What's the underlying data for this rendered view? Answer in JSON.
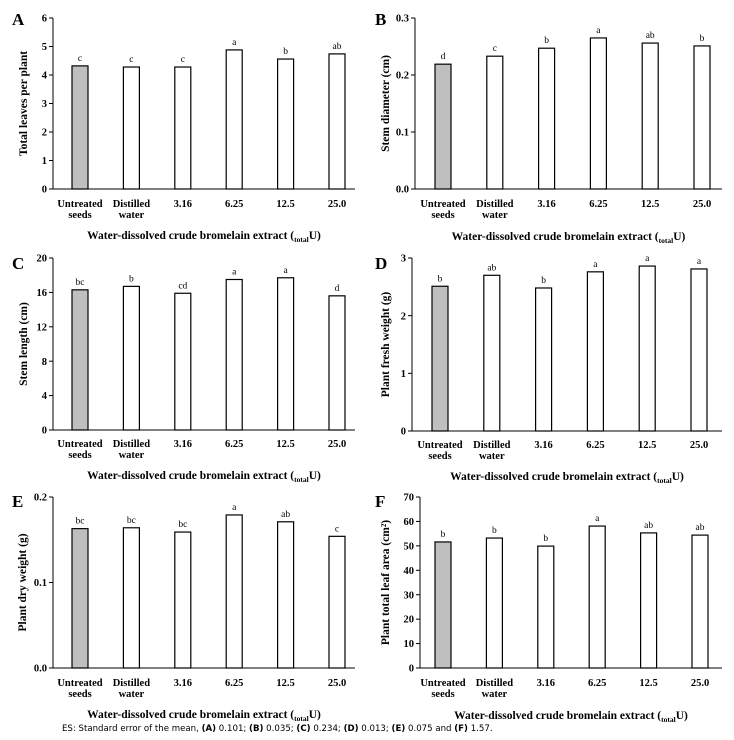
{
  "colors": {
    "control_bar": "#bfbfbf",
    "treatment_bar": "#ffffff",
    "outline": "#000000"
  },
  "footnote": {
    "segments": [
      {
        "text": "ES: Standard error of the mean, ",
        "bold": false
      },
      {
        "text": "(A)",
        "bold": true
      },
      {
        "text": " 0.101; ",
        "bold": false
      },
      {
        "text": "(B)",
        "bold": true
      },
      {
        "text": " 0.035; ",
        "bold": false
      },
      {
        "text": "(C)",
        "bold": true
      },
      {
        "text": " 0.234; ",
        "bold": false
      },
      {
        "text": "(D)",
        "bold": true
      },
      {
        "text": " 0.013; ",
        "bold": false
      },
      {
        "text": "(E)",
        "bold": true
      },
      {
        "text": " 0.075 and ",
        "bold": false
      },
      {
        "text": "(F)",
        "bold": true
      },
      {
        "text": " 1.57.",
        "bold": false
      }
    ]
  },
  "chart_data": [
    {
      "panel": "A",
      "type": "bar",
      "categories": [
        "Untreated seeds",
        "Distilled water",
        "3.16",
        "6.25",
        "12.5",
        "25.0"
      ],
      "values": [
        4.32,
        4.28,
        4.28,
        4.88,
        4.56,
        4.74
      ],
      "significance": [
        "c",
        "c",
        "c",
        "a",
        "b",
        "ab"
      ],
      "ylabel": "Total leaves per plant",
      "xlabel": {
        "main": "Water-dissolved crude bromelain extract (",
        "sub": "total",
        "end": "U)"
      },
      "ylim": [
        0,
        6
      ],
      "yticks": [
        "0",
        "1",
        "2",
        "3",
        "4",
        "5",
        "6"
      ],
      "grid": false
    },
    {
      "panel": "B",
      "type": "bar",
      "categories": [
        "Untreated seeds",
        "Distilled water",
        "3.16",
        "6.25",
        "12.5",
        "25.0"
      ],
      "values": [
        0.219,
        0.233,
        0.247,
        0.265,
        0.256,
        0.251
      ],
      "significance": [
        "d",
        "c",
        "b",
        "a",
        "ab",
        "b"
      ],
      "ylabel": "Stem diameter (cm)",
      "xlabel": {
        "main": "Water-dissolved crude bromelain extract (",
        "sub": "total",
        "end": "U)"
      },
      "ylim": [
        0,
        0.3
      ],
      "yticks": [
        "0.0",
        "0.1",
        "0.2",
        "0.3"
      ],
      "grid": false
    },
    {
      "panel": "C",
      "type": "bar",
      "categories": [
        "Untreated seeds",
        "Distilled water",
        "3.16",
        "6.25",
        "12.5",
        "25.0"
      ],
      "values": [
        16.3,
        16.7,
        15.9,
        17.5,
        17.7,
        15.6
      ],
      "significance": [
        "bc",
        "b",
        "cd",
        "a",
        "a",
        "d"
      ],
      "ylabel": "Stem length (cm)",
      "xlabel": {
        "main": "Water-dissolved crude bromelain extract (",
        "sub": "total",
        "end": "U)"
      },
      "ylim": [
        0,
        20
      ],
      "yticks": [
        "0",
        "4",
        "8",
        "12",
        "16",
        "20"
      ],
      "grid": false
    },
    {
      "panel": "D",
      "type": "bar",
      "categories": [
        "Untreated seeds",
        "Distilled water",
        "3.16",
        "6.25",
        "12.5",
        "25.0"
      ],
      "values": [
        2.51,
        2.7,
        2.48,
        2.76,
        2.86,
        2.81
      ],
      "significance": [
        "b",
        "ab",
        "b",
        "a",
        "a",
        "a"
      ],
      "ylabel": "Plant fresh weight (g)",
      "xlabel": {
        "main": "Water-dissolved crude bromelain extract (",
        "sub": "total",
        "end": "U)"
      },
      "ylim": [
        0,
        3
      ],
      "yticks": [
        "0",
        "1",
        "2",
        "3"
      ],
      "grid": false
    },
    {
      "panel": "E",
      "type": "bar",
      "categories": [
        "Untreated seeds",
        "Distilled water",
        "3.16",
        "6.25",
        "12.5",
        "25.0"
      ],
      "values": [
        0.163,
        0.164,
        0.159,
        0.179,
        0.171,
        0.154
      ],
      "significance": [
        "bc",
        "bc",
        "bc",
        "a",
        "ab",
        "c"
      ],
      "ylabel": "Plant dry weight (g)",
      "xlabel": {
        "main": "Water-dissolved crude bromelain extract (",
        "sub": "total",
        "end": "U)"
      },
      "ylim": [
        0,
        0.2
      ],
      "yticks": [
        "0.0",
        "0.1",
        "0.2"
      ],
      "grid": false
    },
    {
      "panel": "F",
      "type": "bar",
      "categories": [
        "Untreated seeds",
        "Distilled water",
        "3.16",
        "6.25",
        "12.5",
        "25.0"
      ],
      "values": [
        51.6,
        53.2,
        49.9,
        58.1,
        55.3,
        54.4
      ],
      "significance": [
        "b",
        "b",
        "b",
        "a",
        "ab",
        "ab"
      ],
      "ylabel": "Plant total leaf area (cm²)",
      "xlabel": {
        "main": "Water-dissolved crude bromelain extract (",
        "sub": "total",
        "end": "U)"
      },
      "ylim": [
        0,
        70
      ],
      "yticks": [
        "0",
        "10",
        "20",
        "30",
        "40",
        "50",
        "60",
        "70"
      ],
      "grid": false
    }
  ]
}
